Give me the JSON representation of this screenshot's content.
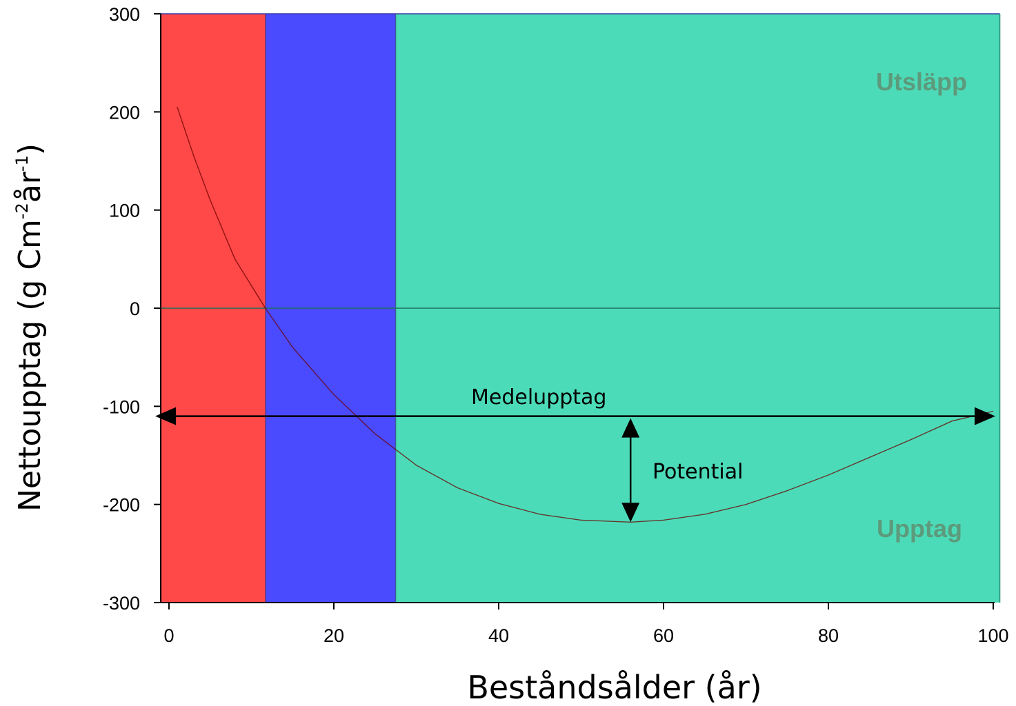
{
  "chart_data": {
    "type": "line",
    "title": "",
    "xlabel": "Beståndsålder (år)",
    "ylabel": "Nettoupptag (g Cm-2år-1)",
    "ylabel_parts": {
      "base": "Nettoupptag (g Cm",
      "sup1": "-2",
      "mid": "år",
      "sup2": "-1",
      "end": ")"
    },
    "xlim": [
      0,
      100
    ],
    "ylim": [
      -300,
      300
    ],
    "x_ticks": [
      0,
      20,
      40,
      60,
      80,
      100
    ],
    "y_ticks": [
      300,
      200,
      100,
      0,
      -100,
      -200,
      -300
    ],
    "grid": false,
    "legend": "none",
    "regions": [
      {
        "x_start": -1,
        "x_end": 11.7,
        "color": "#ff4848"
      },
      {
        "x_start": 11.7,
        "x_end": 27.5,
        "color": "#4a4aff"
      },
      {
        "x_start": 27.5,
        "x_end": 100.8,
        "color": "#4cdbb8"
      }
    ],
    "series": [
      {
        "color": "#6b0000",
        "x": [
          1,
          3,
          5,
          8,
          11.7,
          15,
          20,
          25,
          30,
          35,
          40,
          45,
          50,
          56,
          60,
          65,
          70,
          75,
          80,
          85,
          90,
          95,
          100
        ],
        "y": [
          205,
          155,
          110,
          50,
          0,
          -40,
          -88,
          -128,
          -160,
          -183,
          -199,
          -210,
          -216,
          -218,
          -216,
          -210,
          -200,
          -186,
          -170,
          -152,
          -134,
          -115,
          -105
        ]
      }
    ],
    "reference_lines": [
      {
        "y": 0,
        "color": "#1e6f5c"
      }
    ],
    "annotations": {
      "mean_uptake": {
        "text": "Medelupptag",
        "y": -110,
        "x_start": -1,
        "x_end": 100
      },
      "potential": {
        "text": "Potential",
        "x": 56,
        "y_top": -110,
        "y_bottom": -218
      },
      "emission": {
        "text": "Utsläpp"
      },
      "uptake": {
        "text": "Upptag"
      }
    }
  }
}
